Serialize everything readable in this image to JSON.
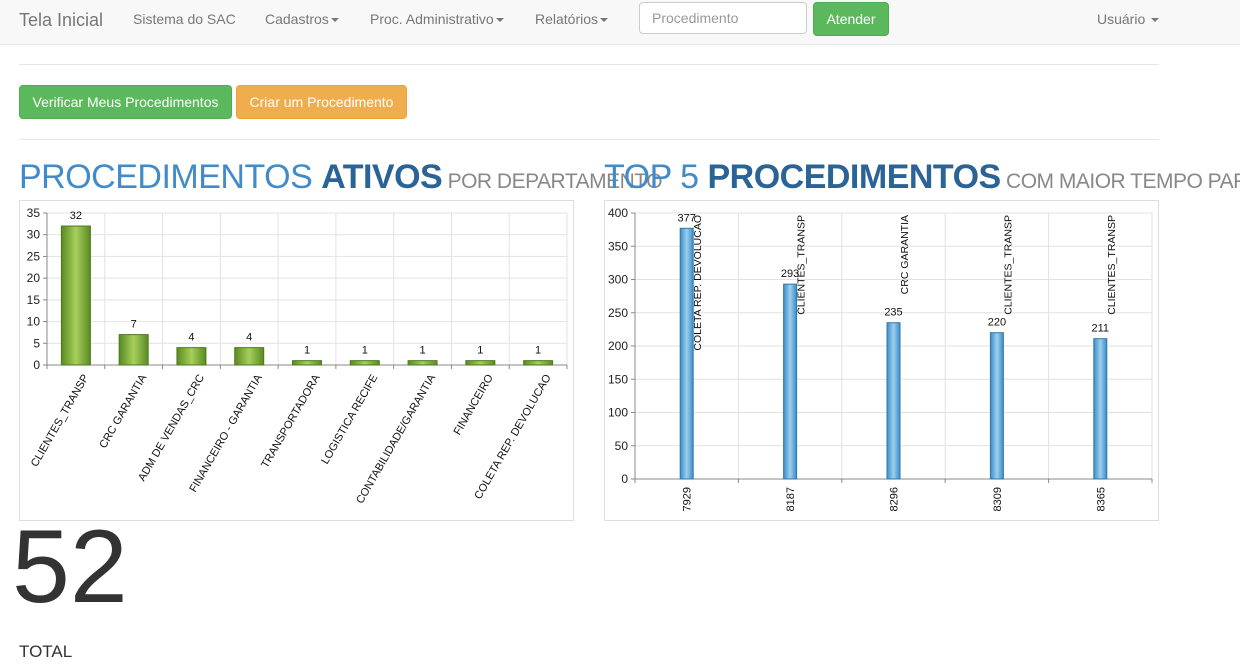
{
  "navbar": {
    "brand": "Tela Inicial",
    "items": [
      "Sistema do SAC",
      "Cadastros",
      "Proc. Administrativo",
      "Relatórios"
    ],
    "search_placeholder": "Procedimento",
    "attend_button": "Atender",
    "user_menu": "Usuário"
  },
  "actions": {
    "verify_button": "Verificar Meus Procedimentos",
    "create_button": "Criar um Procedimento"
  },
  "panel_left": {
    "title_light": "PROCEDIMENTOS ",
    "title_bold": "ATIVOS",
    "title_small": " POR DEPARTAMENTO"
  },
  "panel_right": {
    "title_light": "TOP 5 ",
    "title_bold": "PROCEDIMENTOS",
    "title_small": " COM MAIOR TEMPO PARADO"
  },
  "summary": {
    "total_value": "52",
    "total_label": "TOTAL"
  },
  "chart_data": [
    {
      "type": "bar",
      "categories": [
        "CLIENTES_TRANSP",
        "CRC GARANTIA",
        "ADM DE VENDAS_CRC",
        "FINANCEIRO - GARANTIA",
        "TRANSPORTADORA",
        "LOGISTICA RECIFE",
        "CONTABILIDADE/GARANTIA",
        "FINANCEIRO",
        "COLETA REP. DEVOLUCAO"
      ],
      "values": [
        32,
        7,
        4,
        4,
        1,
        1,
        1,
        1,
        1
      ],
      "ylim": [
        0,
        35
      ],
      "yticks": [
        0,
        5,
        10,
        15,
        20,
        25,
        30,
        35
      ],
      "color": "#6a9a2a",
      "grid": true
    },
    {
      "type": "bar",
      "categories": [
        "7929",
        "8187",
        "8296",
        "8309",
        "8365"
      ],
      "values": [
        377,
        293,
        235,
        220,
        211
      ],
      "bar_labels": [
        "COLETA REP. DEVOLUCAO",
        "CLIENTES_TRANSP",
        "CRC GARANTIA",
        "CLIENTES_TRANSP",
        "CLIENTES_TRANSP"
      ],
      "ylim": [
        0,
        400
      ],
      "yticks": [
        0,
        50,
        100,
        150,
        200,
        250,
        300,
        350,
        400
      ],
      "color": "#4a9fd4",
      "grid": true
    }
  ]
}
